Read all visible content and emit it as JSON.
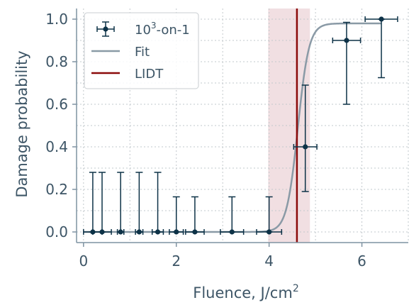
{
  "chart_data": {
    "type": "scatter",
    "xlabel": "Fluence, J/cm",
    "xlabel_sup": "2",
    "ylabel": "Damage probability",
    "xlim": [
      -0.15,
      7.0
    ],
    "ylim": [
      -0.05,
      1.05
    ],
    "xticks": [
      0,
      2,
      4,
      6
    ],
    "yticks": [
      0.0,
      0.2,
      0.4,
      0.6,
      0.8,
      1.0
    ],
    "xtick_labels": [
      "0",
      "2",
      "4",
      "6"
    ],
    "ytick_labels": [
      "0.0",
      "0.2",
      "0.4",
      "0.6",
      "0.8",
      "1.0"
    ],
    "grid": true,
    "legend_position": "top-left",
    "legend": {
      "measured_base": "10",
      "measured_sup": "3",
      "measured_rest": "-on-1",
      "fit": "Fit",
      "lidt": "LIDT"
    },
    "points": [
      {
        "x": 0.2,
        "y": 0.0,
        "xerr": 0.2,
        "yerr_low": 0.0,
        "yerr_high": 0.28
      },
      {
        "x": 0.4,
        "y": 0.0,
        "xerr": 0.2,
        "yerr_low": 0.0,
        "yerr_high": 0.28
      },
      {
        "x": 0.8,
        "y": 0.0,
        "xerr": 0.07,
        "yerr_low": 0.0,
        "yerr_high": 0.28
      },
      {
        "x": 1.2,
        "y": 0.0,
        "xerr": 0.08,
        "yerr_low": 0.0,
        "yerr_high": 0.28
      },
      {
        "x": 1.6,
        "y": 0.0,
        "xerr": 0.12,
        "yerr_low": 0.0,
        "yerr_high": 0.28
      },
      {
        "x": 2.0,
        "y": 0.0,
        "xerr": 0.15,
        "yerr_low": 0.0,
        "yerr_high": 0.165
      },
      {
        "x": 2.4,
        "y": 0.0,
        "xerr": 0.2,
        "yerr_low": 0.0,
        "yerr_high": 0.165
      },
      {
        "x": 3.2,
        "y": 0.0,
        "xerr": 0.25,
        "yerr_low": 0.0,
        "yerr_high": 0.165
      },
      {
        "x": 4.0,
        "y": 0.0,
        "xerr": 0.27,
        "yerr_low": 0.0,
        "yerr_high": 0.165
      },
      {
        "x": 4.78,
        "y": 0.4,
        "xerr": 0.25,
        "yerr_low": 0.21,
        "yerr_high": 0.29
      },
      {
        "x": 5.67,
        "y": 0.9,
        "xerr": 0.3,
        "yerr_low": 0.3,
        "yerr_high": 0.085
      },
      {
        "x": 6.42,
        "y": 1.0,
        "xerr": 0.35,
        "yerr_low": 0.275,
        "yerr_high": 0.0
      }
    ],
    "fit": {
      "center": 4.62,
      "width": 0.12,
      "x_start": 0.0,
      "x_end": 6.42,
      "y_end": 0.98
    },
    "lidt": {
      "x": 4.6,
      "band": [
        3.98,
        4.88
      ]
    },
    "colors": {
      "points": "#0d3247",
      "fit": "#8a9aa6",
      "lidt": "#8b0a0a",
      "band": "#ecd4d8",
      "axis": "#7f93a2",
      "grid": "#c2c8cc",
      "text": "#3d5566"
    }
  }
}
